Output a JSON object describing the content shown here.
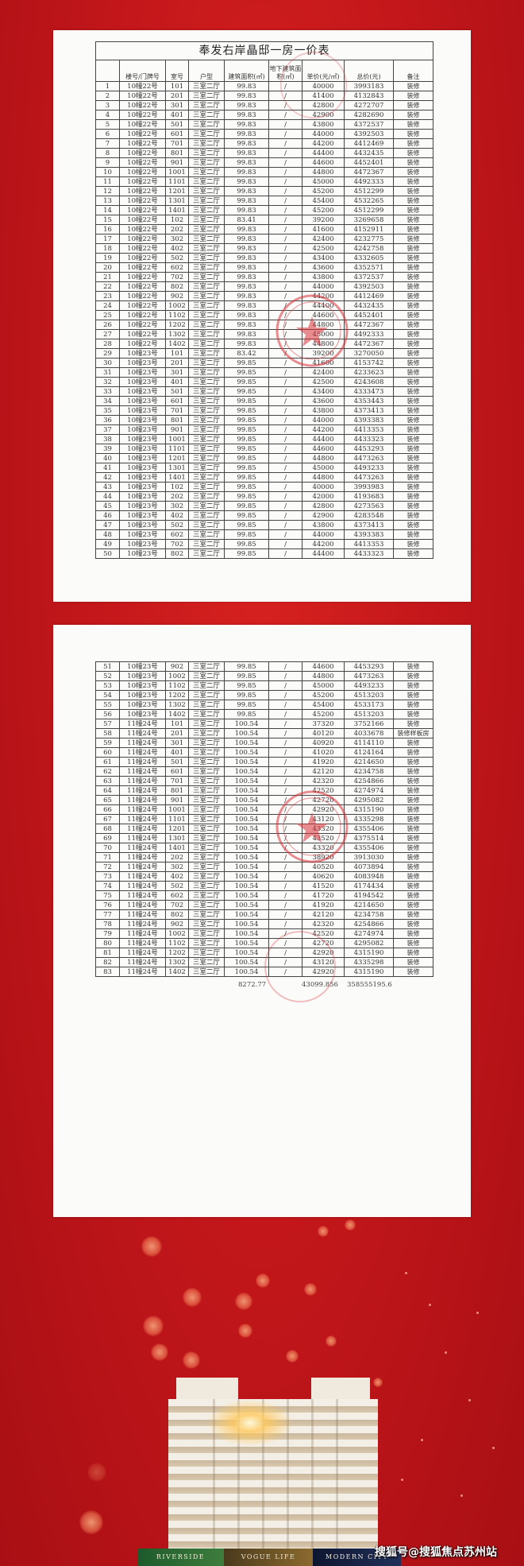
{
  "document": {
    "title": "奉发右岸晶邸一房一价表",
    "headers": [
      "",
      "楼号/门牌号",
      "室号",
      "户型",
      "建筑面积(㎡)",
      "地下建筑面积(㎡)",
      "单价(元/㎡)",
      "总价(元)",
      "备注"
    ],
    "rows": [
      [
        "1",
        "10幢22号",
        "101",
        "三室二厅",
        "99.83",
        "/",
        "40000",
        "3993183",
        "装修"
      ],
      [
        "2",
        "10幢22号",
        "201",
        "三室二厅",
        "99.83",
        "/",
        "41400",
        "4132843",
        "装修"
      ],
      [
        "3",
        "10幢22号",
        "301",
        "三室二厅",
        "99.83",
        "/",
        "42800",
        "4272707",
        "装修"
      ],
      [
        "4",
        "10幢22号",
        "401",
        "三室二厅",
        "99.83",
        "/",
        "42900",
        "4282690",
        "装修"
      ],
      [
        "5",
        "10幢22号",
        "501",
        "三室二厅",
        "99.83",
        "/",
        "43800",
        "4372537",
        "装修"
      ],
      [
        "6",
        "10幢22号",
        "601",
        "三室二厅",
        "99.83",
        "/",
        "44000",
        "4392503",
        "装修"
      ],
      [
        "7",
        "10幢22号",
        "701",
        "三室二厅",
        "99.83",
        "/",
        "44200",
        "4412469",
        "装修"
      ],
      [
        "8",
        "10幢22号",
        "801",
        "三室二厅",
        "99.83",
        "/",
        "44400",
        "4432435",
        "装修"
      ],
      [
        "9",
        "10幢22号",
        "901",
        "三室二厅",
        "99.83",
        "/",
        "44600",
        "4452401",
        "装修"
      ],
      [
        "10",
        "10幢22号",
        "1001",
        "三室二厅",
        "99.83",
        "/",
        "44800",
        "4472367",
        "装修"
      ],
      [
        "11",
        "10幢22号",
        "1101",
        "三室二厅",
        "99.83",
        "/",
        "45000",
        "4492333",
        "装修"
      ],
      [
        "12",
        "10幢22号",
        "1201",
        "三室二厅",
        "99.83",
        "/",
        "45200",
        "4512299",
        "装修"
      ],
      [
        "13",
        "10幢22号",
        "1301",
        "三室二厅",
        "99.83",
        "/",
        "45400",
        "4532265",
        "装修"
      ],
      [
        "14",
        "10幢22号",
        "1401",
        "三室二厅",
        "99.83",
        "/",
        "45200",
        "4512299",
        "装修"
      ],
      [
        "15",
        "10幢22号",
        "102",
        "三室二厅",
        "83.41",
        "/",
        "39200",
        "3269658",
        "装修"
      ],
      [
        "16",
        "10幢22号",
        "202",
        "三室二厅",
        "99.83",
        "/",
        "41600",
        "4152911",
        "装修"
      ],
      [
        "17",
        "10幢22号",
        "302",
        "三室二厅",
        "99.83",
        "/",
        "42400",
        "4232775",
        "装修"
      ],
      [
        "18",
        "10幢22号",
        "402",
        "三室二厅",
        "99.83",
        "/",
        "42500",
        "4242758",
        "装修"
      ],
      [
        "19",
        "10幢22号",
        "502",
        "三室二厅",
        "99.83",
        "/",
        "43400",
        "4332605",
        "装修"
      ],
      [
        "20",
        "10幢22号",
        "602",
        "三室二厅",
        "99.83",
        "/",
        "43600",
        "4352571",
        "装修"
      ],
      [
        "21",
        "10幢22号",
        "702",
        "三室二厅",
        "99.83",
        "/",
        "43800",
        "4372537",
        "装修"
      ],
      [
        "22",
        "10幢22号",
        "802",
        "三室二厅",
        "99.83",
        "/",
        "44000",
        "4392503",
        "装修"
      ],
      [
        "23",
        "10幢22号",
        "902",
        "三室二厅",
        "99.83",
        "/",
        "44200",
        "4412469",
        "装修"
      ],
      [
        "24",
        "10幢22号",
        "1002",
        "三室二厅",
        "99.83",
        "/",
        "44400",
        "4432435",
        "装修"
      ],
      [
        "25",
        "10幢22号",
        "1102",
        "三室二厅",
        "99.83",
        "/",
        "44600",
        "4452401",
        "装修"
      ],
      [
        "26",
        "10幢22号",
        "1202",
        "三室二厅",
        "99.83",
        "/",
        "44800",
        "4472367",
        "装修"
      ],
      [
        "27",
        "10幢22号",
        "1302",
        "三室二厅",
        "99.83",
        "/",
        "45000",
        "4492333",
        "装修"
      ],
      [
        "28",
        "10幢22号",
        "1402",
        "三室二厅",
        "99.83",
        "/",
        "44800",
        "4472367",
        "装修"
      ],
      [
        "29",
        "10幢23号",
        "101",
        "三室二厅",
        "83.42",
        "/",
        "39200",
        "3270050",
        "装修"
      ],
      [
        "30",
        "10幢23号",
        "201",
        "三室二厅",
        "99.85",
        "/",
        "41600",
        "4153742",
        "装修"
      ],
      [
        "31",
        "10幢23号",
        "301",
        "三室二厅",
        "99.85",
        "/",
        "42400",
        "4233623",
        "装修"
      ],
      [
        "32",
        "10幢23号",
        "401",
        "三室二厅",
        "99.85",
        "/",
        "42500",
        "4243608",
        "装修"
      ],
      [
        "33",
        "10幢23号",
        "501",
        "三室二厅",
        "99.85",
        "/",
        "43400",
        "4333473",
        "装修"
      ],
      [
        "34",
        "10幢23号",
        "601",
        "三室二厅",
        "99.85",
        "/",
        "43600",
        "4353443",
        "装修"
      ],
      [
        "35",
        "10幢23号",
        "701",
        "三室二厅",
        "99.85",
        "/",
        "43800",
        "4373413",
        "装修"
      ],
      [
        "36",
        "10幢23号",
        "801",
        "三室二厅",
        "99.85",
        "/",
        "44000",
        "4393383",
        "装修"
      ],
      [
        "37",
        "10幢23号",
        "901",
        "三室二厅",
        "99.85",
        "/",
        "44200",
        "4413353",
        "装修"
      ],
      [
        "38",
        "10幢23号",
        "1001",
        "三室二厅",
        "99.85",
        "/",
        "44400",
        "4433323",
        "装修"
      ],
      [
        "39",
        "10幢23号",
        "1101",
        "三室二厅",
        "99.85",
        "/",
        "44600",
        "4453293",
        "装修"
      ],
      [
        "40",
        "10幢23号",
        "1201",
        "三室二厅",
        "99.85",
        "/",
        "44800",
        "4473263",
        "装修"
      ],
      [
        "41",
        "10幢23号",
        "1301",
        "三室二厅",
        "99.85",
        "/",
        "45000",
        "4493233",
        "装修"
      ],
      [
        "42",
        "10幢23号",
        "1401",
        "三室二厅",
        "99.85",
        "/",
        "44800",
        "4473263",
        "装修"
      ],
      [
        "43",
        "10幢23号",
        "102",
        "三室二厅",
        "99.85",
        "/",
        "40000",
        "3993983",
        "装修"
      ],
      [
        "44",
        "10幢23号",
        "202",
        "三室二厅",
        "99.85",
        "/",
        "42000",
        "4193683",
        "装修"
      ],
      [
        "45",
        "10幢23号",
        "302",
        "三室二厅",
        "99.85",
        "/",
        "42800",
        "4273563",
        "装修"
      ],
      [
        "46",
        "10幢23号",
        "402",
        "三室二厅",
        "99.85",
        "/",
        "42900",
        "4283548",
        "装修"
      ],
      [
        "47",
        "10幢23号",
        "502",
        "三室二厅",
        "99.85",
        "/",
        "43800",
        "4373413",
        "装修"
      ],
      [
        "48",
        "10幢23号",
        "602",
        "三室二厅",
        "99.85",
        "/",
        "44000",
        "4393383",
        "装修"
      ],
      [
        "49",
        "10幢23号",
        "702",
        "三室二厅",
        "99.85",
        "/",
        "44200",
        "4413353",
        "装修"
      ],
      [
        "50",
        "10幢23号",
        "802",
        "三室二厅",
        "99.85",
        "/",
        "44400",
        "4433323",
        "装修"
      ],
      [
        "51",
        "10幢23号",
        "902",
        "三室二厅",
        "99.85",
        "/",
        "44600",
        "4453293",
        "装修"
      ],
      [
        "52",
        "10幢23号",
        "1002",
        "三室二厅",
        "99.85",
        "/",
        "44800",
        "4473263",
        "装修"
      ],
      [
        "53",
        "10幢23号",
        "1102",
        "三室二厅",
        "99.85",
        "/",
        "45000",
        "4493233",
        "装修"
      ],
      [
        "54",
        "10幢23号",
        "1202",
        "三室二厅",
        "99.85",
        "/",
        "45200",
        "4513203",
        "装修"
      ],
      [
        "55",
        "10幢23号",
        "1302",
        "三室二厅",
        "99.85",
        "/",
        "45400",
        "4533173",
        "装修"
      ],
      [
        "56",
        "10幢23号",
        "1402",
        "三室二厅",
        "99.85",
        "/",
        "45200",
        "4513203",
        "装修"
      ],
      [
        "57",
        "11幢24号",
        "101",
        "三室二厅",
        "100.54",
        "/",
        "37320",
        "3752166",
        "装修"
      ],
      [
        "58",
        "11幢24号",
        "201",
        "三室二厅",
        "100.54",
        "/",
        "40120",
        "4033678",
        "装修样板房"
      ],
      [
        "59",
        "11幢24号",
        "301",
        "三室二厅",
        "100.54",
        "/",
        "40920",
        "4114110",
        "装修"
      ],
      [
        "60",
        "11幢24号",
        "401",
        "三室二厅",
        "100.54",
        "/",
        "41020",
        "4124164",
        "装修"
      ],
      [
        "61",
        "11幢24号",
        "501",
        "三室二厅",
        "100.54",
        "/",
        "41920",
        "4214650",
        "装修"
      ],
      [
        "62",
        "11幢24号",
        "601",
        "三室二厅",
        "100.54",
        "/",
        "42120",
        "4234758",
        "装修"
      ],
      [
        "63",
        "11幢24号",
        "701",
        "三室二厅",
        "100.54",
        "/",
        "42320",
        "4254866",
        "装修"
      ],
      [
        "64",
        "11幢24号",
        "801",
        "三室二厅",
        "100.54",
        "/",
        "42520",
        "4274974",
        "装修"
      ],
      [
        "65",
        "11幢24号",
        "901",
        "三室二厅",
        "100.54",
        "/",
        "42720",
        "4295082",
        "装修"
      ],
      [
        "66",
        "11幢24号",
        "1001",
        "三室二厅",
        "100.54",
        "/",
        "42920",
        "4315190",
        "装修"
      ],
      [
        "67",
        "11幢24号",
        "1101",
        "三室二厅",
        "100.54",
        "/",
        "43120",
        "4335298",
        "装修"
      ],
      [
        "68",
        "11幢24号",
        "1201",
        "三室二厅",
        "100.54",
        "/",
        "43320",
        "4355406",
        "装修"
      ],
      [
        "69",
        "11幢24号",
        "1301",
        "三室二厅",
        "100.54",
        "/",
        "43520",
        "4375514",
        "装修"
      ],
      [
        "70",
        "11幢24号",
        "1401",
        "三室二厅",
        "100.54",
        "/",
        "43320",
        "4355406",
        "装修"
      ],
      [
        "71",
        "11幢24号",
        "202",
        "三室二厅",
        "100.54",
        "/",
        "38920",
        "3913030",
        "装修"
      ],
      [
        "72",
        "11幢24号",
        "302",
        "三室二厅",
        "100.54",
        "/",
        "40520",
        "4073894",
        "装修"
      ],
      [
        "73",
        "11幢24号",
        "402",
        "三室二厅",
        "100.54",
        "/",
        "40620",
        "4083948",
        "装修"
      ],
      [
        "74",
        "11幢24号",
        "502",
        "三室二厅",
        "100.54",
        "/",
        "41520",
        "4174434",
        "装修"
      ],
      [
        "75",
        "11幢24号",
        "602",
        "三室二厅",
        "100.54",
        "/",
        "41720",
        "4194542",
        "装修"
      ],
      [
        "76",
        "11幢24号",
        "702",
        "三室二厅",
        "100.54",
        "/",
        "41920",
        "4214650",
        "装修"
      ],
      [
        "77",
        "11幢24号",
        "802",
        "三室二厅",
        "100.54",
        "/",
        "42120",
        "4234758",
        "装修"
      ],
      [
        "78",
        "11幢24号",
        "902",
        "三室二厅",
        "100.54",
        "/",
        "42320",
        "4254866",
        "装修"
      ],
      [
        "79",
        "11幢24号",
        "1002",
        "三室二厅",
        "100.54",
        "/",
        "42520",
        "4274974",
        "装修"
      ],
      [
        "80",
        "11幢24号",
        "1102",
        "三室二厅",
        "100.54",
        "/",
        "42720",
        "4295082",
        "装修"
      ],
      [
        "81",
        "11幢24号",
        "1202",
        "三室二厅",
        "100.54",
        "/",
        "42920",
        "4315190",
        "装修"
      ],
      [
        "82",
        "11幢24号",
        "1302",
        "三室二厅",
        "100.54",
        "/",
        "43120",
        "4335298",
        "装修"
      ],
      [
        "83",
        "11幢24号",
        "1402",
        "三室二厅",
        "100.54",
        "/",
        "42920",
        "4315190",
        "装修"
      ]
    ],
    "page1_row_count": 50,
    "totals": {
      "area": "8272.77",
      "avg_unit_price": "43099.856",
      "total_price": "358555195.6"
    }
  },
  "banner": {
    "strip": [
      "RIVERSIDE",
      "VOGUE LIFE",
      "MODERN CITY"
    ],
    "watermark": "搜狐号@搜狐焦点苏州站"
  },
  "colors": {
    "background": "#c4171b",
    "seal": "#d9323a",
    "paper": "#fbfbfa"
  }
}
